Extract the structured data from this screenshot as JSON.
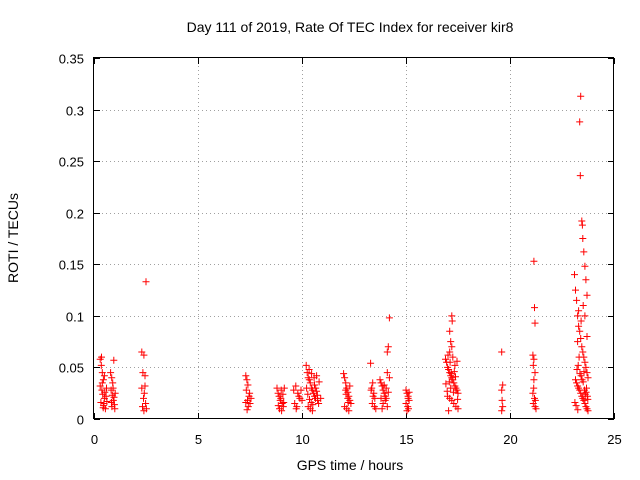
{
  "chart_data": {
    "type": "scatter",
    "title": "Day 111 of 2019, Rate Of TEC Index for receiver kir8",
    "xlabel": "GPS time / hours",
    "ylabel": "ROTI / TECUs",
    "xlim": [
      0,
      25
    ],
    "ylim": [
      0,
      0.35
    ],
    "xticks": [
      0,
      5,
      10,
      15,
      20,
      25
    ],
    "xtick_labels": [
      "0",
      "5",
      "10",
      "15",
      "20",
      "25"
    ],
    "yticks": [
      0,
      0.05,
      0.1,
      0.15,
      0.2,
      0.25,
      0.3,
      0.35
    ],
    "ytick_labels": [
      "0",
      "0.05",
      "0.1",
      "0.15",
      "0.2",
      "0.25",
      "0.3",
      "0.35"
    ],
    "grid": true,
    "marker": "+",
    "color": "#ff0000",
    "series": [
      {
        "name": "ROTI",
        "points": [
          [
            0.3,
            0.058
          ],
          [
            0.35,
            0.052
          ],
          [
            0.4,
            0.045
          ],
          [
            0.45,
            0.038
          ],
          [
            0.3,
            0.032
          ],
          [
            0.38,
            0.028
          ],
          [
            0.42,
            0.024
          ],
          [
            0.5,
            0.02
          ],
          [
            0.33,
            0.016
          ],
          [
            0.46,
            0.013
          ],
          [
            0.55,
            0.01
          ],
          [
            0.4,
            0.035
          ],
          [
            0.5,
            0.042
          ],
          [
            0.6,
            0.03
          ],
          [
            0.58,
            0.022
          ],
          [
            0.62,
            0.017
          ],
          [
            0.36,
            0.06
          ],
          [
            0.48,
            0.015
          ],
          [
            0.52,
            0.026
          ],
          [
            0.44,
            0.011
          ],
          [
            0.8,
            0.045
          ],
          [
            0.85,
            0.04
          ],
          [
            0.9,
            0.035
          ],
          [
            0.95,
            0.057
          ],
          [
            0.82,
            0.028
          ],
          [
            0.88,
            0.023
          ],
          [
            0.93,
            0.018
          ],
          [
            0.98,
            0.014
          ],
          [
            1.0,
            0.01
          ],
          [
            0.86,
            0.012
          ],
          [
            0.92,
            0.03
          ],
          [
            0.96,
            0.021
          ],
          [
            0.84,
            0.016
          ],
          [
            1.02,
            0.025
          ],
          [
            2.3,
            0.065
          ],
          [
            2.4,
            0.062
          ],
          [
            2.35,
            0.045
          ],
          [
            2.45,
            0.042
          ],
          [
            2.5,
            0.133
          ],
          [
            2.3,
            0.03
          ],
          [
            2.42,
            0.025
          ],
          [
            2.38,
            0.02
          ],
          [
            2.48,
            0.015
          ],
          [
            2.33,
            0.012
          ],
          [
            2.52,
            0.01
          ],
          [
            2.4,
            0.008
          ],
          [
            2.45,
            0.032
          ],
          [
            7.3,
            0.042
          ],
          [
            7.35,
            0.038
          ],
          [
            7.4,
            0.033
          ],
          [
            7.32,
            0.028
          ],
          [
            7.45,
            0.022
          ],
          [
            7.38,
            0.018
          ],
          [
            7.5,
            0.015
          ],
          [
            7.42,
            0.012
          ],
          [
            7.36,
            0.009
          ],
          [
            7.48,
            0.025
          ],
          [
            7.55,
            0.02
          ],
          [
            7.3,
            0.016
          ],
          [
            8.8,
            0.03
          ],
          [
            8.85,
            0.025
          ],
          [
            8.9,
            0.022
          ],
          [
            8.95,
            0.018
          ],
          [
            9.0,
            0.028
          ],
          [
            9.05,
            0.015
          ],
          [
            9.1,
            0.012
          ],
          [
            8.92,
            0.01
          ],
          [
            8.98,
            0.02
          ],
          [
            9.08,
            0.024
          ],
          [
            9.12,
            0.016
          ],
          [
            8.86,
            0.013
          ],
          [
            9.02,
            0.008
          ],
          [
            9.15,
            0.03
          ],
          [
            9.6,
            0.028
          ],
          [
            9.7,
            0.032
          ],
          [
            9.8,
            0.025
          ],
          [
            9.9,
            0.02
          ],
          [
            10.0,
            0.018
          ],
          [
            9.65,
            0.015
          ],
          [
            9.75,
            0.012
          ],
          [
            9.85,
            0.022
          ],
          [
            9.95,
            0.028
          ],
          [
            9.72,
            0.01
          ],
          [
            10.2,
            0.052
          ],
          [
            10.25,
            0.045
          ],
          [
            10.3,
            0.04
          ],
          [
            10.35,
            0.038
          ],
          [
            10.4,
            0.035
          ],
          [
            10.45,
            0.03
          ],
          [
            10.5,
            0.028
          ],
          [
            10.55,
            0.025
          ],
          [
            10.6,
            0.022
          ],
          [
            10.65,
            0.02
          ],
          [
            10.7,
            0.042
          ],
          [
            10.75,
            0.018
          ],
          [
            10.8,
            0.015
          ],
          [
            10.3,
            0.012
          ],
          [
            10.4,
            0.01
          ],
          [
            10.5,
            0.008
          ],
          [
            10.6,
            0.033
          ],
          [
            10.7,
            0.027
          ],
          [
            10.22,
            0.03
          ],
          [
            10.28,
            0.024
          ],
          [
            10.36,
            0.019
          ],
          [
            10.44,
            0.016
          ],
          [
            10.52,
            0.014
          ],
          [
            10.58,
            0.04
          ],
          [
            10.66,
            0.03
          ],
          [
            10.74,
            0.023
          ],
          [
            10.82,
            0.036
          ],
          [
            10.9,
            0.02
          ],
          [
            10.34,
            0.048
          ],
          [
            10.46,
            0.044
          ],
          [
            12.0,
            0.044
          ],
          [
            12.05,
            0.04
          ],
          [
            12.1,
            0.035
          ],
          [
            12.15,
            0.03
          ],
          [
            12.2,
            0.026
          ],
          [
            12.25,
            0.022
          ],
          [
            12.3,
            0.018
          ],
          [
            12.35,
            0.015
          ],
          [
            12.05,
            0.012
          ],
          [
            12.15,
            0.01
          ],
          [
            12.25,
            0.008
          ],
          [
            12.1,
            0.028
          ],
          [
            12.2,
            0.02
          ],
          [
            12.3,
            0.032
          ],
          [
            12.12,
            0.024
          ],
          [
            12.22,
            0.016
          ],
          [
            13.3,
            0.054
          ],
          [
            13.4,
            0.035
          ],
          [
            13.35,
            0.03
          ],
          [
            13.45,
            0.025
          ],
          [
            13.5,
            0.02
          ],
          [
            13.38,
            0.015
          ],
          [
            13.48,
            0.012
          ],
          [
            13.55,
            0.01
          ],
          [
            13.42,
            0.022
          ],
          [
            13.32,
            0.028
          ],
          [
            13.75,
            0.038
          ],
          [
            13.8,
            0.035
          ],
          [
            13.85,
            0.032
          ],
          [
            13.9,
            0.028
          ],
          [
            13.95,
            0.025
          ],
          [
            14.0,
            0.022
          ],
          [
            14.05,
            0.02
          ],
          [
            14.1,
            0.045
          ],
          [
            14.15,
            0.07
          ],
          [
            14.1,
            0.065
          ],
          [
            14.2,
            0.098
          ],
          [
            14.0,
            0.018
          ],
          [
            13.9,
            0.015
          ],
          [
            14.1,
            0.012
          ],
          [
            13.85,
            0.01
          ],
          [
            14.05,
            0.03
          ],
          [
            14.15,
            0.026
          ],
          [
            13.95,
            0.033
          ],
          [
            14.2,
            0.04
          ],
          [
            13.8,
            0.02
          ],
          [
            15.0,
            0.028
          ],
          [
            15.05,
            0.025
          ],
          [
            15.1,
            0.022
          ],
          [
            15.15,
            0.018
          ],
          [
            15.0,
            0.015
          ],
          [
            15.08,
            0.012
          ],
          [
            15.12,
            0.01
          ],
          [
            15.05,
            0.008
          ],
          [
            15.1,
            0.02
          ],
          [
            15.15,
            0.026
          ],
          [
            16.9,
            0.058
          ],
          [
            16.95,
            0.055
          ],
          [
            17.0,
            0.05
          ],
          [
            17.05,
            0.048
          ],
          [
            17.1,
            0.045
          ],
          [
            17.15,
            0.042
          ],
          [
            17.2,
            0.04
          ],
          [
            17.25,
            0.038
          ],
          [
            17.3,
            0.035
          ],
          [
            17.35,
            0.032
          ],
          [
            17.4,
            0.03
          ],
          [
            17.45,
            0.028
          ],
          [
            17.5,
            0.025
          ],
          [
            17.1,
            0.085
          ],
          [
            17.15,
            0.075
          ],
          [
            17.2,
            0.07
          ],
          [
            17.2,
            0.1
          ],
          [
            17.22,
            0.095
          ],
          [
            17.1,
            0.065
          ],
          [
            17.25,
            0.06
          ],
          [
            17.0,
            0.022
          ],
          [
            17.1,
            0.02
          ],
          [
            17.2,
            0.018
          ],
          [
            17.3,
            0.015
          ],
          [
            17.4,
            0.012
          ],
          [
            17.5,
            0.01
          ],
          [
            17.05,
            0.008
          ],
          [
            17.15,
            0.03
          ],
          [
            17.35,
            0.052
          ],
          [
            17.45,
            0.056
          ],
          [
            16.92,
            0.034
          ],
          [
            16.98,
            0.027
          ],
          [
            17.08,
            0.036
          ],
          [
            17.18,
            0.044
          ],
          [
            17.28,
            0.026
          ],
          [
            17.38,
            0.041
          ],
          [
            17.48,
            0.019
          ],
          [
            17.02,
            0.062
          ],
          [
            17.12,
            0.055
          ],
          [
            17.32,
            0.046
          ],
          [
            19.6,
            0.065
          ],
          [
            19.65,
            0.033
          ],
          [
            19.6,
            0.028
          ],
          [
            19.62,
            0.018
          ],
          [
            19.65,
            0.012
          ],
          [
            19.6,
            0.008
          ],
          [
            21.1,
            0.062
          ],
          [
            21.15,
            0.058
          ],
          [
            21.12,
            0.052
          ],
          [
            21.2,
            0.045
          ],
          [
            21.15,
            0.153
          ],
          [
            21.18,
            0.108
          ],
          [
            21.2,
            0.093
          ],
          [
            21.15,
            0.038
          ],
          [
            21.1,
            0.025
          ],
          [
            21.18,
            0.02
          ],
          [
            21.22,
            0.018
          ],
          [
            21.12,
            0.015
          ],
          [
            21.2,
            0.012
          ],
          [
            21.25,
            0.01
          ],
          [
            21.14,
            0.03
          ],
          [
            23.1,
            0.14
          ],
          [
            23.15,
            0.125
          ],
          [
            23.2,
            0.115
          ],
          [
            23.25,
            0.1
          ],
          [
            23.3,
            0.09
          ],
          [
            23.35,
            0.085
          ],
          [
            23.4,
            0.078
          ],
          [
            23.45,
            0.07
          ],
          [
            23.5,
            0.065
          ],
          [
            23.55,
            0.06
          ],
          [
            23.6,
            0.055
          ],
          [
            23.65,
            0.05
          ],
          [
            23.7,
            0.045
          ],
          [
            23.75,
            0.04
          ],
          [
            23.4,
            0.313
          ],
          [
            23.35,
            0.288
          ],
          [
            23.38,
            0.236
          ],
          [
            23.45,
            0.192
          ],
          [
            23.48,
            0.188
          ],
          [
            23.5,
            0.175
          ],
          [
            23.55,
            0.162
          ],
          [
            23.6,
            0.148
          ],
          [
            23.65,
            0.135
          ],
          [
            23.7,
            0.12
          ],
          [
            23.2,
            0.035
          ],
          [
            23.25,
            0.032
          ],
          [
            23.3,
            0.03
          ],
          [
            23.35,
            0.028
          ],
          [
            23.4,
            0.025
          ],
          [
            23.45,
            0.022
          ],
          [
            23.5,
            0.02
          ],
          [
            23.55,
            0.018
          ],
          [
            23.6,
            0.015
          ],
          [
            23.65,
            0.012
          ],
          [
            23.7,
            0.01
          ],
          [
            23.75,
            0.008
          ],
          [
            23.15,
            0.038
          ],
          [
            23.22,
            0.048
          ],
          [
            23.28,
            0.052
          ],
          [
            23.32,
            0.06
          ],
          [
            23.42,
            0.042
          ],
          [
            23.52,
            0.036
          ],
          [
            23.58,
            0.028
          ],
          [
            23.62,
            0.024
          ],
          [
            23.68,
            0.03
          ],
          [
            23.72,
            0.022
          ],
          [
            23.12,
            0.016
          ],
          [
            23.18,
            0.013
          ],
          [
            23.26,
            0.009
          ],
          [
            23.36,
            0.044
          ],
          [
            23.46,
            0.038
          ],
          [
            23.56,
            0.046
          ],
          [
            23.66,
            0.026
          ],
          [
            23.74,
            0.019
          ],
          [
            23.3,
            0.105
          ],
          [
            23.42,
            0.095
          ],
          [
            23.52,
            0.11
          ],
          [
            23.6,
            0.1
          ],
          [
            23.7,
            0.08
          ],
          [
            23.25,
            0.075
          ]
        ]
      }
    ]
  }
}
